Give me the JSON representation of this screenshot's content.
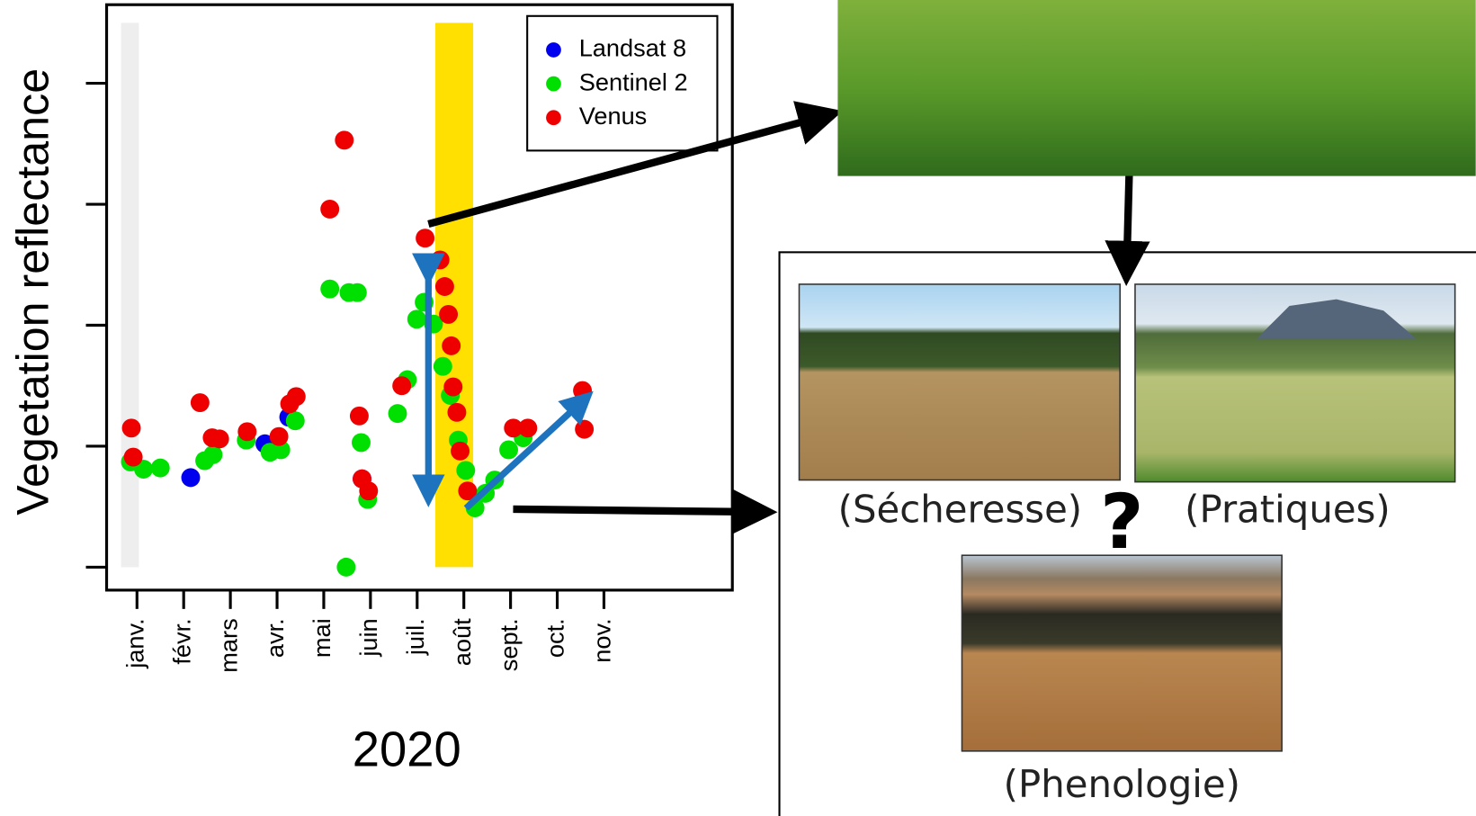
{
  "chart_data": {
    "type": "scatter",
    "y_label": "Vegetation reflectance",
    "x_label": "2020",
    "xlim": [
      -0.65,
      12.75
    ],
    "xticks": [
      {
        "value": 0,
        "label": "janv."
      },
      {
        "value": 1,
        "label": "févr."
      },
      {
        "value": 2,
        "label": "mars"
      },
      {
        "value": 3,
        "label": "avr."
      },
      {
        "value": 4,
        "label": "mai"
      },
      {
        "value": 5,
        "label": "juin"
      },
      {
        "value": 6,
        "label": "juil."
      },
      {
        "value": 7,
        "label": "août"
      },
      {
        "value": 8,
        "label": "sept."
      },
      {
        "value": 9,
        "label": "oct."
      },
      {
        "value": 10,
        "label": "nov."
      }
    ],
    "ylim": [
      -0.19,
      4.65
    ],
    "yticks": [
      0,
      1,
      2,
      3,
      4
    ],
    "legend": "top-right",
    "spans": [
      {
        "x": [
          -0.34,
          0.04
        ],
        "y": [
          0,
          4.5
        ],
        "color": "#eeeeee"
      },
      {
        "x": [
          6.39,
          7.2
        ],
        "y": [
          0,
          4.5
        ],
        "color": "#ffe000"
      }
    ],
    "series": [
      {
        "name": "Landsat 8",
        "color": "#0000ee",
        "x": [
          1.15,
          2.74,
          3.25,
          4.82
        ],
        "values": [
          0.74,
          1.02,
          1.24,
          0.73
        ]
      },
      {
        "name": "Sentinel 2",
        "color": "#00e000",
        "x": [
          -0.14,
          0.14,
          0.5,
          1.45,
          1.63,
          2.34,
          2.85,
          3.08,
          3.39,
          4.13,
          4.48,
          4.54,
          4.72,
          4.8,
          4.94,
          5.58,
          5.79,
          5.99,
          6.15,
          6.35,
          6.55,
          6.71,
          6.88,
          7.04,
          7.24,
          7.46,
          7.66,
          7.96,
          8.27
        ],
        "values": [
          0.87,
          0.81,
          0.82,
          0.88,
          0.93,
          1.05,
          0.95,
          0.97,
          1.21,
          2.3,
          0,
          2.27,
          2.27,
          1.03,
          0.56,
          1.27,
          1.55,
          2.05,
          2.19,
          2.01,
          1.66,
          1.42,
          1.05,
          0.8,
          0.49,
          0.61,
          0.72,
          0.97,
          1.07
        ]
      },
      {
        "name": "Venus",
        "color": "#ee0000",
        "x": [
          -0.12,
          -0.08,
          1.35,
          1.61,
          1.77,
          2.36,
          3.04,
          3.27,
          3.41,
          4.13,
          4.44,
          4.76,
          4.82,
          4.96,
          5.67,
          6.17,
          6.49,
          6.59,
          6.67,
          6.73,
          6.77,
          6.85,
          6.92,
          7.08,
          8.06,
          8.37,
          9.54,
          9.58
        ],
        "values": [
          1.15,
          0.91,
          1.36,
          1.07,
          1.06,
          1.12,
          1.08,
          1.35,
          1.41,
          2.96,
          3.53,
          1.25,
          0.73,
          0.63,
          1.5,
          2.72,
          2.54,
          2.32,
          2.09,
          1.83,
          1.49,
          1.28,
          0.96,
          0.63,
          1.15,
          1.15,
          1.46,
          1.14
        ]
      }
    ]
  },
  "figure": {
    "captions": [
      "(Sécheresse)",
      "(Pratiques)",
      "?",
      "(Phenologie)"
    ]
  }
}
